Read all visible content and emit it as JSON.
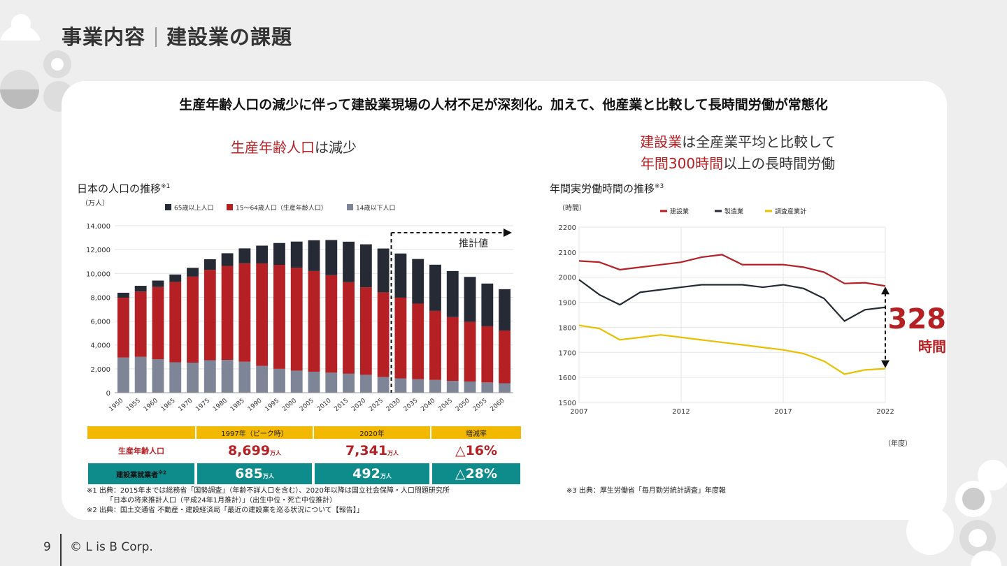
{
  "page": {
    "title_a": "事業内容",
    "title_b": "建設業の課題",
    "headline": "生産年齢人口の減少に伴って建設業現場の人材不足が深刻化。加えて、他産業と比較して長時間労働が常態化",
    "page_number": "9",
    "copyright": "© L is B Corp."
  },
  "left": {
    "sub_red": "生産年齢人口",
    "sub_rest": "は減少",
    "chart_title": "日本の人口の推移",
    "chart_title_sup": "※1",
    "unit": "（万人）",
    "forecast_label": "推計値"
  },
  "right": {
    "sub_line1_red": "建設業",
    "sub_line1_rest": "は全産業平均と比較して",
    "sub_line2_red": "年間300時間",
    "sub_line2_rest": "以上の長時間労働",
    "chart_title": "年間実労働時間の推移",
    "chart_title_sup": "※3",
    "unit": "（時間）",
    "year_unit": "（年度）",
    "gap_value": "328",
    "gap_unit": "時間"
  },
  "table": {
    "headers": [
      "",
      "1997年（ピーク時）",
      "2020年",
      "増減率"
    ],
    "rows": [
      {
        "label": "生産年齢人口",
        "v1": "8,699",
        "u1": "万人",
        "v2": "7,341",
        "u2": "万人",
        "rate": "△16%"
      },
      {
        "label": "建設業就業者",
        "label_sup": "※2",
        "v1": "685",
        "u1": "万人",
        "v2": "492",
        "u2": "万人",
        "rate": "△28%"
      }
    ]
  },
  "notes": {
    "n1a": "※1 出典：2015年までは総務省「国勢調査」（年齢不詳人口を含む）、2020年以降は国立社会保障・人口問題研究所",
    "n1b": "「日本の将来推計人口（平成24年1月推計）」（出生中位・死亡中位推計）",
    "n2": "※2 出典：国土交通省 不動産・建設経済局「最近の建設業を巡る状況について【報告】」",
    "n3": "※3 出典：厚生労働省「毎月勤労統計調査」年度報"
  },
  "colors": {
    "red": "#b52025",
    "dark": "#252a35",
    "gray": "#7d8597",
    "yellow": "#e8c000",
    "teal": "#0e8c8c",
    "gold": "#f3b800"
  },
  "chart_data": [
    {
      "type": "bar",
      "stacked": true,
      "categories": [
        "1950",
        "1955",
        "1960",
        "1965",
        "1970",
        "1975",
        "1980",
        "1985",
        "1990",
        "1995",
        "2000",
        "2005",
        "2010",
        "2015",
        "2020",
        "2025",
        "2030",
        "2035",
        "2040",
        "2045",
        "2050",
        "2055",
        "2060"
      ],
      "series": [
        {
          "name": "14歳以下人口",
          "color": "#7d8597",
          "values": [
            2950,
            3010,
            2810,
            2550,
            2520,
            2720,
            2750,
            2600,
            2250,
            2000,
            1850,
            1760,
            1680,
            1590,
            1500,
            1320,
            1200,
            1130,
            1070,
            990,
            940,
            860,
            790
          ]
        },
        {
          "name": "15～64歳人口（生産年齢人口）",
          "color": "#b52025",
          "values": [
            5010,
            5470,
            6050,
            6740,
            7210,
            7580,
            7880,
            8250,
            8590,
            8720,
            8620,
            8440,
            8170,
            7680,
            7340,
            7090,
            6770,
            6340,
            5790,
            5350,
            5000,
            4710,
            4420
          ]
        },
        {
          "name": "65歳以上人口",
          "color": "#252a35",
          "values": [
            420,
            480,
            540,
            620,
            740,
            890,
            1060,
            1250,
            1490,
            1830,
            2200,
            2580,
            2950,
            3390,
            3600,
            3680,
            3700,
            3740,
            3870,
            3860,
            3770,
            3580,
            3470
          ]
        }
      ],
      "ylim": [
        0,
        14000
      ],
      "yticks": [
        "0",
        "2,000",
        "4,000",
        "6,000",
        "8,000",
        "10,000",
        "12,000",
        "14,000"
      ],
      "ylabel": "（万人）",
      "forecast_from": "2030",
      "legend": "top"
    },
    {
      "type": "line",
      "x": [
        2007,
        2008,
        2009,
        2010,
        2011,
        2012,
        2013,
        2014,
        2015,
        2016,
        2017,
        2018,
        2019,
        2020,
        2021,
        2022
      ],
      "series": [
        {
          "name": "建設業",
          "color": "#b52025",
          "values": [
            2065,
            2060,
            2030,
            2040,
            2050,
            2060,
            2080,
            2090,
            2050,
            2050,
            2050,
            2040,
            2020,
            1975,
            1978,
            1965
          ]
        },
        {
          "name": "製造業",
          "color": "#252a35",
          "values": [
            1990,
            1930,
            1890,
            1940,
            1950,
            1960,
            1970,
            1970,
            1970,
            1960,
            1970,
            1955,
            1915,
            1825,
            1870,
            1880
          ]
        },
        {
          "name": "調査産業計",
          "color": "#e8c000",
          "values": [
            1808,
            1795,
            1750,
            1760,
            1770,
            1760,
            1750,
            1740,
            1730,
            1720,
            1710,
            1695,
            1665,
            1613,
            1630,
            1635
          ]
        }
      ],
      "ylim": [
        1500,
        2200
      ],
      "yticks": [
        "1500",
        "1600",
        "1700",
        "1800",
        "1900",
        "2000",
        "2100",
        "2200"
      ],
      "xticks": [
        "2007",
        "2012",
        "2017",
        "2022"
      ],
      "ylabel": "（時間）",
      "xlabel": "（年度）",
      "legend": "top"
    }
  ]
}
